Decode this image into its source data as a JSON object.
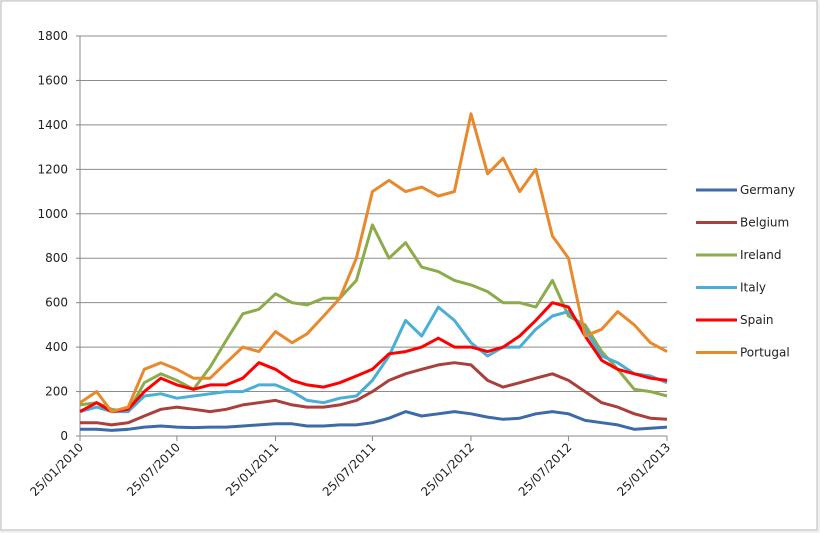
{
  "chart_data": {
    "type": "line",
    "x": [
      "25/01/2010",
      "25/02/2010",
      "25/03/2010",
      "25/04/2010",
      "25/05/2010",
      "25/06/2010",
      "25/07/2010",
      "25/08/2010",
      "25/09/2010",
      "25/10/2010",
      "25/11/2010",
      "25/12/2010",
      "25/01/2011",
      "25/02/2011",
      "25/03/2011",
      "25/04/2011",
      "25/05/2011",
      "25/06/2011",
      "25/07/2011",
      "25/08/2011",
      "25/09/2011",
      "25/10/2011",
      "25/11/2011",
      "25/12/2011",
      "25/01/2012",
      "25/02/2012",
      "25/03/2012",
      "25/04/2012",
      "25/05/2012",
      "25/06/2012",
      "25/07/2012",
      "25/08/2012",
      "25/09/2012",
      "25/10/2012",
      "25/11/2012",
      "25/12/2012",
      "25/01/2013"
    ],
    "series": [
      {
        "name": "Germany",
        "color": "#3d6aa8",
        "values": [
          30,
          30,
          25,
          30,
          40,
          45,
          40,
          38,
          40,
          40,
          45,
          50,
          55,
          55,
          45,
          45,
          50,
          50,
          60,
          80,
          110,
          90,
          100,
          110,
          100,
          85,
          75,
          80,
          100,
          110,
          100,
          70,
          60,
          50,
          30,
          35,
          40
        ]
      },
      {
        "name": "Belgium",
        "color": "#a9403c",
        "values": [
          60,
          60,
          50,
          60,
          90,
          120,
          130,
          120,
          110,
          120,
          140,
          150,
          160,
          140,
          130,
          130,
          140,
          160,
          200,
          250,
          280,
          300,
          320,
          330,
          320,
          250,
          220,
          240,
          260,
          280,
          250,
          200,
          150,
          130,
          100,
          80,
          75
        ]
      },
      {
        "name": "Ireland",
        "color": "#8cab4a",
        "values": [
          140,
          150,
          120,
          110,
          240,
          280,
          250,
          210,
          310,
          430,
          550,
          570,
          640,
          600,
          590,
          620,
          620,
          700,
          950,
          800,
          870,
          760,
          740,
          700,
          680,
          650,
          600,
          600,
          580,
          700,
          540,
          500,
          380,
          300,
          210,
          200,
          180
        ]
      },
      {
        "name": "Italy",
        "color": "#4aaed6",
        "values": [
          110,
          130,
          110,
          110,
          180,
          190,
          170,
          180,
          190,
          200,
          200,
          230,
          230,
          200,
          160,
          150,
          170,
          180,
          250,
          360,
          520,
          450,
          580,
          520,
          420,
          360,
          400,
          400,
          480,
          540,
          560,
          480,
          360,
          330,
          280,
          270,
          240
        ]
      },
      {
        "name": "Spain",
        "color": "#ff0000",
        "values": [
          110,
          150,
          110,
          120,
          200,
          260,
          230,
          210,
          230,
          230,
          260,
          330,
          300,
          250,
          230,
          220,
          240,
          270,
          300,
          370,
          380,
          400,
          440,
          400,
          400,
          380,
          400,
          450,
          520,
          600,
          580,
          450,
          340,
          300,
          280,
          260,
          250
        ]
      },
      {
        "name": "Portugal",
        "color": "#e8892d",
        "values": [
          150,
          200,
          110,
          130,
          300,
          330,
          300,
          260,
          260,
          330,
          400,
          380,
          470,
          420,
          460,
          540,
          620,
          800,
          1100,
          1150,
          1100,
          1120,
          1080,
          1100,
          1450,
          1180,
          1250,
          1100,
          1200,
          900,
          800,
          450,
          480,
          560,
          500,
          420,
          380
        ]
      }
    ],
    "xlim": [
      "25/01/2010",
      "25/01/2013"
    ],
    "xticks": [
      "25/01/2010",
      "25/07/2010",
      "25/01/2011",
      "25/07/2011",
      "25/01/2012",
      "25/07/2012",
      "25/01/2013"
    ],
    "ylim": [
      0,
      1800
    ],
    "yticks": [
      0,
      200,
      400,
      600,
      800,
      1000,
      1200,
      1400,
      1600,
      1800
    ],
    "grid": true,
    "legend": "right"
  }
}
